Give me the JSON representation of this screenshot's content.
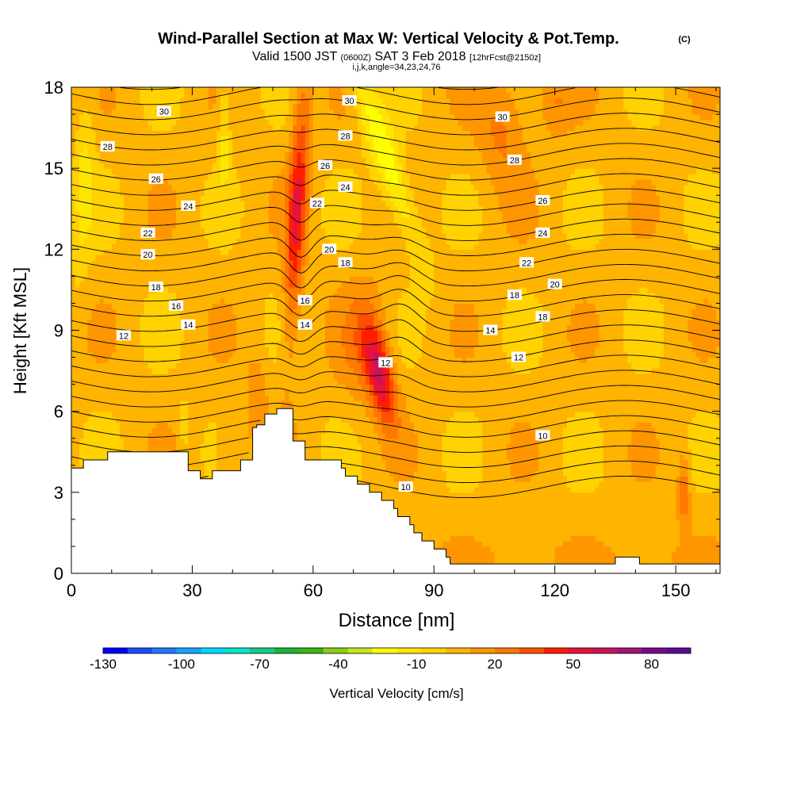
{
  "chart_data": {
    "type": "heatmap",
    "title": "Wind-Parallel Section at Max W: Vertical Velocity & Pot.Temp.",
    "title_mark": "(C)",
    "subtitle_parts": {
      "valid": "Valid 1500 JST",
      "utc": "(0600Z)",
      "date": "SAT 3 Feb 2018",
      "forecast": "[12hrFcst@2150z]"
    },
    "subtitle2": "i,j,k,angle=34,23,24,76",
    "xlabel": "Distance [nm]",
    "ylabel": "Height [Kft MSL]",
    "xlim": [
      0,
      161
    ],
    "ylim": [
      0,
      18
    ],
    "x_ticks": [
      0,
      30,
      60,
      90,
      120,
      150
    ],
    "y_ticks": [
      0,
      3,
      6,
      9,
      12,
      15,
      18
    ],
    "colorbar": {
      "label": "Vertical Velocity [cm/s]",
      "min": -130,
      "max": 95,
      "tick_labels": [
        -130,
        -100,
        -70,
        -40,
        -10,
        20,
        50,
        80
      ],
      "colors": [
        "#0000ff",
        "#1a4cff",
        "#1e78ff",
        "#14a6ff",
        "#00d6ff",
        "#00e6c8",
        "#14cc82",
        "#1eb432",
        "#3cb414",
        "#8ccd14",
        "#c8e61e",
        "#ffff00",
        "#ffe600",
        "#ffd200",
        "#ffb400",
        "#ff9600",
        "#ff7800",
        "#ff5000",
        "#ff1e00",
        "#e6143c",
        "#c8145a",
        "#a01478",
        "#780a8c",
        "#5a0a96"
      ]
    },
    "isotherm_labels": [
      {
        "x": 13,
        "y": 8.8,
        "text": "12"
      },
      {
        "x": 29,
        "y": 9.2,
        "text": "14"
      },
      {
        "x": 26,
        "y": 9.9,
        "text": "16"
      },
      {
        "x": 21,
        "y": 10.6,
        "text": "18"
      },
      {
        "x": 19,
        "y": 11.8,
        "text": "20"
      },
      {
        "x": 19,
        "y": 12.6,
        "text": "22"
      },
      {
        "x": 29,
        "y": 13.6,
        "text": "24"
      },
      {
        "x": 21,
        "y": 14.6,
        "text": "26"
      },
      {
        "x": 9,
        "y": 15.8,
        "text": "28"
      },
      {
        "x": 23,
        "y": 17.1,
        "text": "30"
      },
      {
        "x": 58,
        "y": 9.2,
        "text": "14"
      },
      {
        "x": 58,
        "y": 10.1,
        "text": "16"
      },
      {
        "x": 61,
        "y": 13.7,
        "text": "22"
      },
      {
        "x": 64,
        "y": 12.0,
        "text": "20"
      },
      {
        "x": 68,
        "y": 11.5,
        "text": "18"
      },
      {
        "x": 68,
        "y": 14.3,
        "text": "24"
      },
      {
        "x": 63,
        "y": 15.1,
        "text": "26"
      },
      {
        "x": 68,
        "y": 16.2,
        "text": "28"
      },
      {
        "x": 69,
        "y": 17.5,
        "text": "30"
      },
      {
        "x": 78,
        "y": 7.8,
        "text": "12"
      },
      {
        "x": 83,
        "y": 3.2,
        "text": "10"
      },
      {
        "x": 104,
        "y": 9.0,
        "text": "14"
      },
      {
        "x": 111,
        "y": 8.0,
        "text": "12"
      },
      {
        "x": 110,
        "y": 10.3,
        "text": "18"
      },
      {
        "x": 117,
        "y": 9.5,
        "text": "18"
      },
      {
        "x": 120,
        "y": 10.7,
        "text": "20"
      },
      {
        "x": 113,
        "y": 11.5,
        "text": "22"
      },
      {
        "x": 117,
        "y": 12.6,
        "text": "24"
      },
      {
        "x": 117,
        "y": 13.8,
        "text": "26"
      },
      {
        "x": 110,
        "y": 15.3,
        "text": "28"
      },
      {
        "x": 107,
        "y": 16.9,
        "text": "30"
      },
      {
        "x": 117,
        "y": 5.1,
        "text": "10"
      }
    ]
  }
}
